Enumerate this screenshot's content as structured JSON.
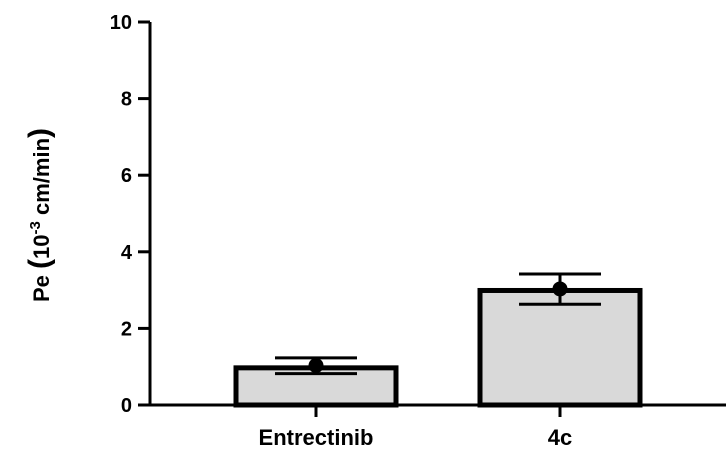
{
  "chart_data": {
    "type": "bar",
    "categories": [
      "Entrectinib",
      "4c"
    ],
    "values": [
      0.97,
      2.99
    ],
    "points": [
      1.03,
      3.03
    ],
    "error_low": [
      0.82,
      2.63
    ],
    "error_high": [
      1.23,
      3.42
    ],
    "title": "",
    "xlabel": "",
    "ylabel": {
      "prefix": "Pe",
      "open": "(",
      "base": "10",
      "exponent": "-3",
      "unit": " cm/min",
      "close": ")"
    },
    "ylim": [
      0,
      10
    ],
    "yticks": [
      "0",
      "2",
      "4",
      "6",
      "8",
      "10"
    ],
    "grid": false,
    "bar_color": "#d9d9d9",
    "edge_color": "#000000"
  }
}
